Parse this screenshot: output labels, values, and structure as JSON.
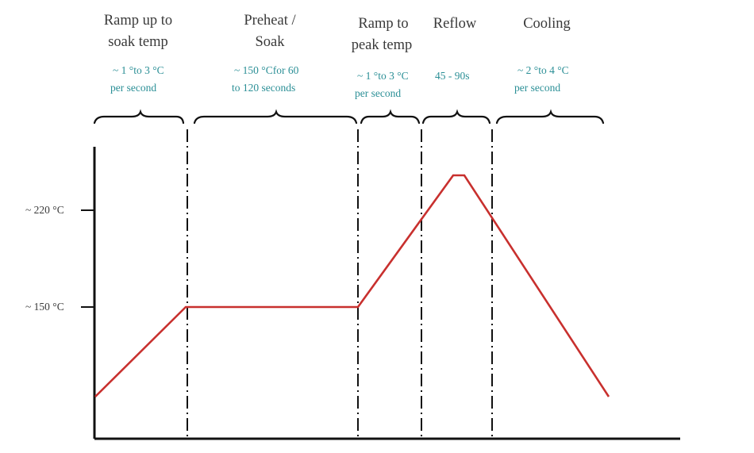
{
  "phases": [
    {
      "title_lines": [
        "Ramp up to",
        "soak temp"
      ],
      "note_lines": [
        "~ 1 °to 3  °C",
        "per second"
      ]
    },
    {
      "title_lines": [
        "Preheat /",
        "Soak"
      ],
      "note_lines": [
        "~ 150 °Cfor 60",
        "to 120 seconds"
      ]
    },
    {
      "title_lines": [
        "Ramp to",
        "peak temp"
      ],
      "note_lines": [
        "~ 1 °to 3  °C",
        "per second"
      ]
    },
    {
      "title_lines": [
        "Reflow"
      ],
      "note_lines": [
        "45 - 90s"
      ]
    },
    {
      "title_lines": [
        "Cooling"
      ],
      "note_lines": [
        "~ 2 °to 4  °C",
        "per second"
      ]
    }
  ],
  "y_ticks": [
    {
      "label": "~ 220 °C",
      "value": 220
    },
    {
      "label": "~ 150 °C",
      "value": 150
    }
  ],
  "colors": {
    "profile_line": "#c8302e",
    "note_text": "#2b8f96",
    "title_text": "#3a3a3a",
    "axes": "#111111"
  }
}
